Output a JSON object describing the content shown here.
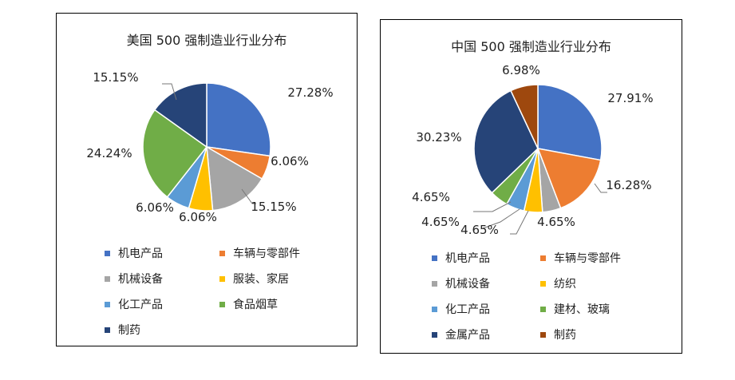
{
  "chart_data": [
    {
      "type": "pie",
      "title": "美国 500 强制造业行业分布",
      "categories": [
        "机电产品",
        "车辆与零部件",
        "机械设备",
        "服装、家居",
        "化工产品",
        "食品烟草",
        "制药"
      ],
      "values": [
        27.28,
        6.06,
        15.15,
        6.06,
        6.06,
        24.24,
        15.15
      ],
      "labels": [
        "27.28%",
        "6.06%",
        "15.15%",
        "6.06%",
        "6.06%",
        "24.24%",
        "15.15%"
      ],
      "colors": [
        "#4472C4",
        "#ED7D31",
        "#A5A5A5",
        "#FFC000",
        "#5B9BD5",
        "#70AD47",
        "#264478"
      ],
      "legend_position": "bottom"
    },
    {
      "type": "pie",
      "title": "中国 500 强制造业行业分布",
      "categories": [
        "机电产品",
        "车辆与零部件",
        "机械设备",
        "纺织",
        "化工产品",
        "建材、玻璃",
        "金属产品",
        "制药"
      ],
      "values": [
        27.91,
        16.28,
        4.65,
        4.65,
        4.65,
        4.65,
        30.23,
        6.98
      ],
      "labels": [
        "27.91%",
        "16.28%",
        "4.65%",
        "4.65%",
        "4.65%",
        "4.65%",
        "30.23%",
        "6.98%"
      ],
      "colors": [
        "#4472C4",
        "#ED7D31",
        "#A5A5A5",
        "#FFC000",
        "#5B9BD5",
        "#70AD47",
        "#264478",
        "#9E480E"
      ],
      "legend_position": "bottom"
    }
  ]
}
